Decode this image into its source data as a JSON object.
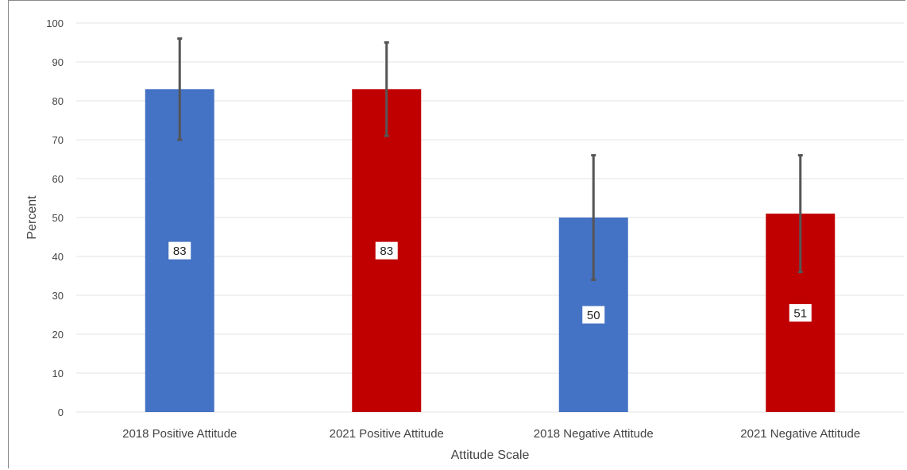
{
  "chart_data": {
    "type": "bar",
    "title": "",
    "xlabel": "Attitude Scale",
    "ylabel": "Percent",
    "ylim": [
      0,
      100
    ],
    "yticks": [
      0,
      10,
      20,
      30,
      40,
      50,
      60,
      70,
      80,
      90,
      100
    ],
    "grid": true,
    "categories": [
      "2018 Positive Attitude",
      "2021 Positive Attitude",
      "2018 Negative Attitude",
      "2021 Negative Attitude"
    ],
    "values": [
      83,
      83,
      50,
      51
    ],
    "data_labels": [
      "83",
      "83",
      "50",
      "51"
    ],
    "error_bars": [
      {
        "low": 70,
        "high": 96
      },
      {
        "low": 71,
        "high": 95
      },
      {
        "low": 34,
        "high": 66
      },
      {
        "low": 36,
        "high": 66
      }
    ],
    "colors": [
      "#4472c4",
      "#c00000",
      "#4472c4",
      "#c00000"
    ],
    "error_bar_color": "#555555",
    "gridline_color": "#e3e3e3"
  }
}
